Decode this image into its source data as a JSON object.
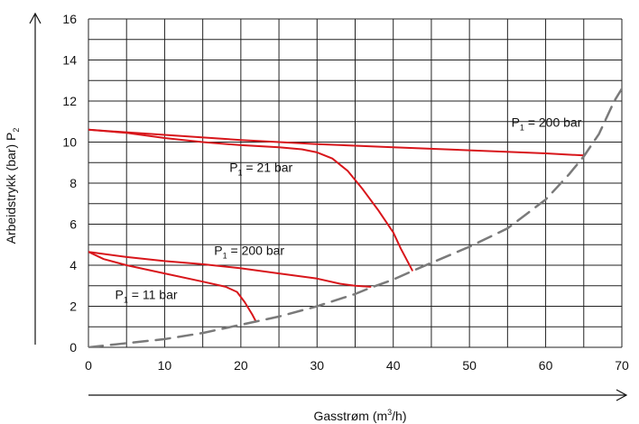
{
  "chart_data": {
    "type": "line",
    "xlabel": "Gasstrøm (m³/h)",
    "xlabel_parts": {
      "before": "Gasstrøm (m",
      "sup": "3",
      "after": "/h)"
    },
    "ylabel": "Arbeidstrykk (bar) P₂",
    "ylabel_parts": {
      "main": "Arbeidstrykk (bar) P",
      "sub": "2"
    },
    "xlim": [
      0,
      70
    ],
    "ylim": [
      0,
      16
    ],
    "x_ticks": [
      0,
      10,
      20,
      30,
      40,
      50,
      60,
      70
    ],
    "y_ticks": [
      0,
      2,
      4,
      6,
      8,
      10,
      12,
      14,
      16
    ],
    "grid": true,
    "series": [
      {
        "name": "P₁ = 200 bar",
        "color": "#d8161b",
        "style": "solid",
        "points": [
          [
            0,
            10.6
          ],
          [
            10,
            10.35
          ],
          [
            20,
            10.1
          ],
          [
            30,
            9.9
          ],
          [
            40,
            9.75
          ],
          [
            50,
            9.6
          ],
          [
            60,
            9.45
          ],
          [
            65,
            9.35
          ]
        ]
      },
      {
        "name": "P₁ = 21 bar",
        "color": "#d8161b",
        "style": "solid",
        "points": [
          [
            0,
            10.6
          ],
          [
            5,
            10.45
          ],
          [
            10,
            10.2
          ],
          [
            15,
            10.0
          ],
          [
            20,
            9.85
          ],
          [
            25,
            9.75
          ],
          [
            28,
            9.65
          ],
          [
            30,
            9.5
          ],
          [
            32,
            9.2
          ],
          [
            34,
            8.6
          ],
          [
            36,
            7.7
          ],
          [
            38,
            6.7
          ],
          [
            40,
            5.6
          ],
          [
            41,
            4.8
          ],
          [
            42,
            4.1
          ],
          [
            42.5,
            3.75
          ]
        ]
      },
      {
        "name": "P₁ = 200 bar",
        "color": "#d8161b",
        "style": "solid",
        "points": [
          [
            0,
            4.65
          ],
          [
            5,
            4.4
          ],
          [
            10,
            4.2
          ],
          [
            15,
            4.05
          ],
          [
            20,
            3.85
          ],
          [
            25,
            3.6
          ],
          [
            30,
            3.35
          ],
          [
            33,
            3.1
          ],
          [
            35,
            3.0
          ],
          [
            37,
            2.95
          ]
        ]
      },
      {
        "name": "P₁ = 11 bar",
        "color": "#d8161b",
        "style": "solid",
        "points": [
          [
            0,
            4.65
          ],
          [
            2,
            4.3
          ],
          [
            5,
            4.0
          ],
          [
            10,
            3.6
          ],
          [
            15,
            3.2
          ],
          [
            18,
            2.95
          ],
          [
            19.5,
            2.7
          ],
          [
            20.5,
            2.2
          ],
          [
            21.5,
            1.6
          ],
          [
            22,
            1.25
          ]
        ]
      },
      {
        "name": "",
        "color": "#7a7a7a",
        "style": "dashed",
        "points": [
          [
            0,
            0
          ],
          [
            5,
            0.2
          ],
          [
            10,
            0.4
          ],
          [
            15,
            0.7
          ],
          [
            20,
            1.1
          ],
          [
            25,
            1.5
          ],
          [
            30,
            2.0
          ],
          [
            35,
            2.6
          ],
          [
            37,
            2.9
          ],
          [
            40,
            3.3
          ],
          [
            43,
            3.8
          ],
          [
            50,
            4.9
          ],
          [
            55,
            5.8
          ],
          [
            60,
            7.2
          ],
          [
            63,
            8.4
          ],
          [
            65,
            9.3
          ],
          [
            67,
            10.4
          ],
          [
            69,
            12.0
          ],
          [
            70,
            12.6
          ]
        ]
      }
    ],
    "annotations": [
      {
        "main": "P",
        "sub": "1",
        "rest": " = 200 bar",
        "at": [
          55.5,
          10.75
        ]
      },
      {
        "main": "P",
        "sub": "1",
        "rest": " = 21 bar",
        "at": [
          18.5,
          8.55
        ]
      },
      {
        "main": "P",
        "sub": "1",
        "rest": " = 200 bar",
        "at": [
          16.5,
          4.5
        ]
      },
      {
        "main": "P",
        "sub": "1",
        "rest": " = 11 bar",
        "at": [
          3.5,
          2.35
        ]
      }
    ]
  }
}
